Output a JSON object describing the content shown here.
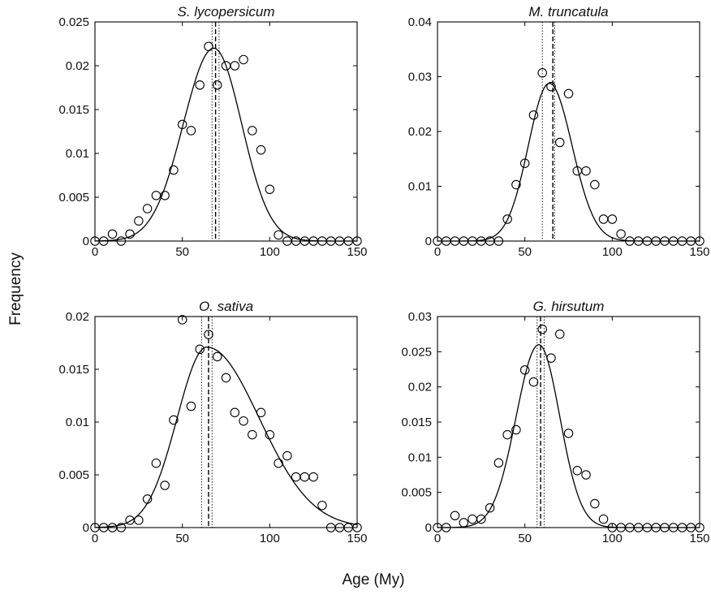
{
  "figure": {
    "ylabel": "Frequency",
    "xlabel": "Age (My)"
  },
  "chart_data": [
    {
      "type": "scatter",
      "title": "S. lycopersicum",
      "xlim": [
        0,
        150
      ],
      "ylim": [
        0,
        0.025
      ],
      "xticks": [
        "0",
        "50",
        "100",
        "150"
      ],
      "yticks": [
        "0",
        "0.005",
        "0.01",
        "0.015",
        "0.02",
        "0.025"
      ],
      "ytick_values": [
        0,
        0.005,
        0.01,
        0.015,
        0.02,
        0.025
      ],
      "series": [
        {
          "marker": "open-circle",
          "x": [
            0,
            5,
            10,
            15,
            20,
            25,
            30,
            35,
            40,
            45,
            50,
            55,
            60,
            65,
            70,
            75,
            80,
            85,
            90,
            95,
            100,
            105,
            110,
            115,
            120,
            125,
            130,
            135,
            140,
            145,
            150
          ],
          "y": [
            0,
            0,
            0.0008,
            0,
            0.0008,
            0.0023,
            0.0037,
            0.0052,
            0.0052,
            0.0081,
            0.0133,
            0.0126,
            0.0178,
            0.0222,
            0.0178,
            0.02,
            0.02,
            0.0207,
            0.0126,
            0.0104,
            0.0059,
            0.0007,
            0,
            0,
            0,
            0,
            0,
            0,
            0,
            0,
            0
          ]
        }
      ],
      "fit_curve": {
        "style": "solid",
        "peak_x": 68,
        "peak_y": 0.022,
        "sd_left": 17.5,
        "sd_right": 16
      },
      "vlines": [
        {
          "x": 69,
          "style": "dashed"
        },
        {
          "x": 67,
          "style": "dotted"
        },
        {
          "x": 71,
          "style": "dotted"
        }
      ]
    },
    {
      "type": "scatter",
      "title": "M. truncatula",
      "xlim": [
        0,
        150
      ],
      "ylim": [
        0,
        0.04
      ],
      "xticks": [
        "0",
        "50",
        "100",
        "150"
      ],
      "yticks": [
        "0",
        "0.01",
        "0.02",
        "0.03",
        "0.04"
      ],
      "ytick_values": [
        0,
        0.01,
        0.02,
        0.03,
        0.04
      ],
      "series": [
        {
          "marker": "open-circle",
          "x": [
            0,
            5,
            10,
            15,
            20,
            25,
            30,
            35,
            40,
            45,
            50,
            55,
            60,
            65,
            70,
            75,
            80,
            85,
            90,
            95,
            100,
            105,
            110,
            115,
            120,
            125,
            130,
            135,
            140,
            145,
            150
          ],
          "y": [
            0,
            0,
            0,
            0,
            0,
            0,
            0,
            0,
            0.004,
            0.0103,
            0.0142,
            0.023,
            0.0307,
            0.0282,
            0.018,
            0.0269,
            0.0128,
            0.0128,
            0.0103,
            0.004,
            0.004,
            0.0013,
            0,
            0,
            0,
            0,
            0,
            0,
            0,
            0,
            0
          ]
        }
      ],
      "fit_curve": {
        "style": "solid",
        "peak_x": 64,
        "peak_y": 0.0288,
        "sd_left": 12,
        "sd_right": 13
      },
      "vlines": [
        {
          "x": 66,
          "style": "dashed"
        },
        {
          "x": 60,
          "style": "dotted"
        },
        {
          "x": 67,
          "style": "dotted"
        }
      ]
    },
    {
      "type": "scatter",
      "title": "O. sativa",
      "xlim": [
        0,
        150
      ],
      "ylim": [
        0,
        0.02
      ],
      "xticks": [
        "0",
        "50",
        "100",
        "150"
      ],
      "yticks": [
        "0",
        "0.005",
        "0.01",
        "0.015",
        "0.02"
      ],
      "ytick_values": [
        0,
        0.005,
        0.01,
        0.015,
        0.02
      ],
      "series": [
        {
          "marker": "open-circle",
          "x": [
            0,
            5,
            10,
            15,
            20,
            25,
            30,
            35,
            40,
            45,
            50,
            55,
            60,
            65,
            70,
            75,
            80,
            85,
            90,
            95,
            100,
            105,
            110,
            115,
            120,
            125,
            130,
            135,
            140,
            145,
            150
          ],
          "y": [
            0,
            0,
            0,
            0,
            0.0007,
            0.0007,
            0.0027,
            0.0061,
            0.004,
            0.0102,
            0.0197,
            0.0115,
            0.0169,
            0.0183,
            0.0162,
            0.0142,
            0.0109,
            0.0101,
            0.0088,
            0.0109,
            0.0088,
            0.0061,
            0.0068,
            0.0048,
            0.0048,
            0.0048,
            0.0021,
            0,
            0,
            0,
            0
          ]
        }
      ],
      "fit_curve": {
        "style": "solid",
        "peak_x": 64,
        "peak_y": 0.0171,
        "sd_left": 17,
        "sd_right": 30
      },
      "vlines": [
        {
          "x": 65,
          "style": "dashed"
        },
        {
          "x": 61,
          "style": "dotted"
        },
        {
          "x": 67,
          "style": "dotted"
        }
      ]
    },
    {
      "type": "scatter",
      "title": "G. hirsutum",
      "xlim": [
        0,
        150
      ],
      "ylim": [
        0,
        0.03
      ],
      "xticks": [
        "0",
        "50",
        "100",
        "150"
      ],
      "yticks": [
        "0",
        "0.005",
        "0.01",
        "0.015",
        "0.02",
        "0.025",
        "0.03"
      ],
      "ytick_values": [
        0,
        0.005,
        0.01,
        0.015,
        0.02,
        0.025,
        0.03
      ],
      "series": [
        {
          "marker": "open-circle",
          "x": [
            0,
            5,
            10,
            15,
            20,
            25,
            30,
            35,
            40,
            45,
            50,
            55,
            60,
            65,
            70,
            75,
            80,
            85,
            90,
            95,
            100,
            105,
            110,
            115,
            120,
            125,
            130,
            135,
            140,
            145,
            150
          ],
          "y": [
            0,
            0,
            0.0017,
            0.0007,
            0.0012,
            0.0012,
            0.0028,
            0.0092,
            0.0132,
            0.0139,
            0.0224,
            0.0207,
            0.0282,
            0.0241,
            0.0275,
            0.0134,
            0.0081,
            0.0075,
            0.0034,
            0.0012,
            0,
            0,
            0,
            0,
            0,
            0,
            0,
            0,
            0,
            0,
            0
          ]
        }
      ],
      "fit_curve": {
        "style": "solid",
        "peak_x": 58,
        "peak_y": 0.026,
        "sd_left": 13,
        "sd_right": 12
      },
      "vlines": [
        {
          "x": 59,
          "style": "dashed"
        },
        {
          "x": 57,
          "style": "dotted"
        },
        {
          "x": 61,
          "style": "dotted"
        }
      ]
    }
  ]
}
